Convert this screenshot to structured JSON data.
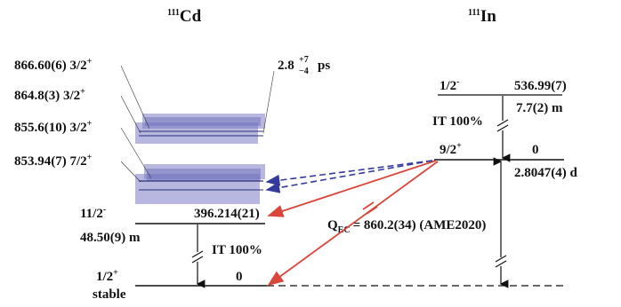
{
  "diagram": {
    "parent": {
      "mass": "111",
      "symbol": "In"
    },
    "daughter": {
      "mass": "111",
      "symbol": "Cd"
    },
    "daughter_levels": [
      {
        "energy": "866.60(6)",
        "spin": "3/2",
        "parity": "+"
      },
      {
        "energy": "864.8(3)",
        "spin": "3/2",
        "parity": "+"
      },
      {
        "energy": "855.6(10)",
        "spin": "3/2",
        "parity": "+"
      },
      {
        "energy": "853.94(7)",
        "spin": "7/2",
        "parity": "+"
      }
    ],
    "halflife_upper": {
      "base": "2.8",
      "plus": "+7",
      "minus": "−4",
      "unit": "ps"
    },
    "isomer_cd": {
      "spin": "11/2",
      "parity": "-",
      "energy": "396.214(21)",
      "halflife": "48.50(9) m",
      "it": "IT 100%"
    },
    "ground_cd": {
      "spin": "1/2",
      "parity": "+",
      "energy": "0",
      "stable": "stable"
    },
    "isomer_in": {
      "spin": "1/2",
      "parity": "-",
      "energy": "536.99(7)",
      "halflife": "7.7(2) m",
      "it": "IT 100%"
    },
    "ground_in": {
      "spin": "9/2",
      "parity": "+",
      "energy": "0",
      "halflife": "2.8047(4) d"
    },
    "qec": {
      "label": "Q",
      "sub": "EC",
      "value": "= 860.2(34) (AME2020)"
    },
    "colors": {
      "band": "#7c7cc4",
      "band_line": "#2a2f7a",
      "ec_arrow": "#d9473a",
      "blue_arrow": "#343a9c"
    }
  }
}
